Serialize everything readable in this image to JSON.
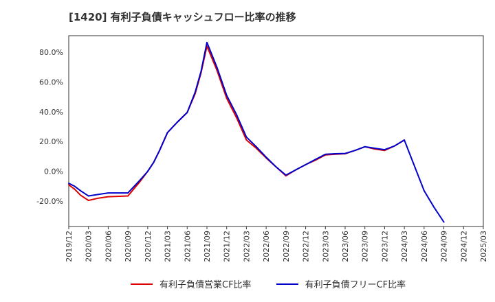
{
  "chart_data": {
    "type": "line",
    "title": "[1420]  有利子負債キャッシュフロー比率の推移",
    "xlabel": "",
    "ylabel": "",
    "ylim": [
      -37,
      91
    ],
    "yticks": [
      {
        "value": -20,
        "label": "-20.0%"
      },
      {
        "value": 0,
        "label": "0.0%"
      },
      {
        "value": 20,
        "label": "20.0%"
      },
      {
        "value": 40,
        "label": "40.0%"
      },
      {
        "value": 60,
        "label": "60.0%"
      },
      {
        "value": 80,
        "label": "80.0%"
      }
    ],
    "x_categories": [
      "2019/12",
      "2020/03",
      "2020/06",
      "2020/09",
      "2020/12",
      "2021/03",
      "2021/06",
      "2021/09",
      "2021/12",
      "2022/03",
      "2022/06",
      "2022/09",
      "2022/12",
      "2023/03",
      "2023/06",
      "2023/09",
      "2023/12",
      "2024/03",
      "2024/06",
      "2024/09",
      "2024/12",
      "2025/03"
    ],
    "grid": true,
    "legend_position": "bottom",
    "series": [
      {
        "name": "有利子負債営業CF比率",
        "color": "#dd0000",
        "points": [
          [
            0,
            -9
          ],
          [
            0.3,
            -12
          ],
          [
            0.6,
            -16
          ],
          [
            1,
            -19.5
          ],
          [
            1.5,
            -18
          ],
          [
            2,
            -17
          ],
          [
            3,
            -16.5
          ],
          [
            3.6,
            -7
          ],
          [
            4,
            0
          ],
          [
            4.3,
            6
          ],
          [
            4.6,
            14
          ],
          [
            5,
            26
          ],
          [
            5.5,
            33
          ],
          [
            6,
            39.5
          ],
          [
            6.4,
            52
          ],
          [
            6.7,
            66
          ],
          [
            7,
            84
          ],
          [
            7.5,
            68
          ],
          [
            8,
            49
          ],
          [
            8.5,
            36
          ],
          [
            9,
            21
          ],
          [
            9.5,
            15.5
          ],
          [
            10,
            9
          ],
          [
            10.5,
            3
          ],
          [
            11,
            -3
          ],
          [
            11.5,
            1
          ],
          [
            12,
            4.5
          ],
          [
            12.5,
            7.5
          ],
          [
            13,
            11
          ],
          [
            13.5,
            11.5
          ],
          [
            14,
            11.8
          ],
          [
            14.5,
            14
          ],
          [
            15,
            16.5
          ],
          [
            15.5,
            15
          ],
          [
            16,
            14
          ],
          [
            16.5,
            17
          ],
          [
            17,
            21
          ]
        ]
      },
      {
        "name": "有利子負債フリーCF比率",
        "color": "#0000cc",
        "points": [
          [
            0,
            -8
          ],
          [
            0.3,
            -10
          ],
          [
            0.6,
            -13
          ],
          [
            1,
            -16.5
          ],
          [
            1.5,
            -15.5
          ],
          [
            2,
            -14.5
          ],
          [
            3,
            -14.5
          ],
          [
            3.6,
            -6
          ],
          [
            4,
            0
          ],
          [
            4.3,
            6
          ],
          [
            4.6,
            14
          ],
          [
            5,
            26
          ],
          [
            5.5,
            33
          ],
          [
            6,
            39.5
          ],
          [
            6.4,
            53
          ],
          [
            6.7,
            67
          ],
          [
            7,
            86.5
          ],
          [
            7.5,
            70
          ],
          [
            8,
            51
          ],
          [
            8.5,
            38
          ],
          [
            9,
            23
          ],
          [
            9.5,
            16.5
          ],
          [
            10,
            9.5
          ],
          [
            10.5,
            3
          ],
          [
            11,
            -2.5
          ],
          [
            11.5,
            1
          ],
          [
            12,
            4.5
          ],
          [
            12.5,
            8
          ],
          [
            13,
            11.5
          ],
          [
            13.5,
            11.8
          ],
          [
            14,
            12
          ],
          [
            14.5,
            14
          ],
          [
            15,
            16.5
          ],
          [
            15.5,
            15.5
          ],
          [
            16,
            14.5
          ],
          [
            16.5,
            17
          ],
          [
            17,
            21
          ],
          [
            17.5,
            4
          ],
          [
            18,
            -13
          ],
          [
            18.5,
            -24
          ],
          [
            19,
            -34
          ]
        ]
      }
    ]
  }
}
